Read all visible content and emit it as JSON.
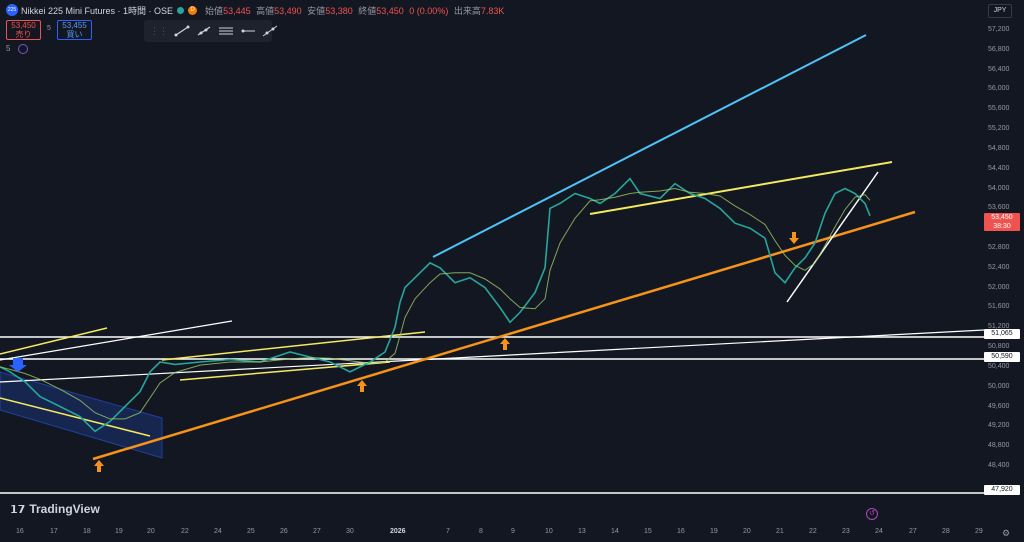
{
  "header": {
    "badge": "225",
    "title": "Nikkei 225 Mini Futures · 1時間 · OSE",
    "badge_d": "D",
    "ohlc": [
      {
        "label": "始値",
        "value": "53,445"
      },
      {
        "label": "高値",
        "value": "53,490"
      },
      {
        "label": "安値",
        "value": "53,380"
      },
      {
        "label": "終値",
        "value": "53,450"
      },
      {
        "label": "",
        "value": "0 (0.00%)"
      },
      {
        "label": "出来高",
        "value": "7.83K"
      }
    ]
  },
  "trade": {
    "sell_price": "53,450",
    "sell_label": "売り",
    "spread": "5",
    "buy_price": "53,455",
    "buy_label": "買い"
  },
  "indicator": {
    "label": "5"
  },
  "currency": "JPY",
  "colors": {
    "up": "#26a69a",
    "down": "#ef5350",
    "orange": "#f7931a",
    "yellow": "#f5e960",
    "cyan": "#4fc3f7",
    "blue": "#2962ff"
  },
  "toolbar_icons": [
    "trend-line-icon",
    "ray-icon",
    "parallel-channel-icon",
    "horizontal-ray-icon",
    "extended-line-icon"
  ],
  "y_ticks": [
    "57,200",
    "56,800",
    "56,400",
    "56,000",
    "55,600",
    "55,200",
    "54,800",
    "54,400",
    "54,000",
    "53,600",
    "52,800",
    "52,400",
    "52,000",
    "51,600",
    "51,200",
    "50,800",
    "50,400",
    "50,000",
    "49,600",
    "49,200",
    "48,800",
    "48,400"
  ],
  "y_labels": [
    {
      "text": "53,450",
      "sub": "38:30",
      "kind": "current"
    },
    {
      "text": "51,065",
      "kind": "line"
    },
    {
      "text": "50,590",
      "kind": "line"
    },
    {
      "text": "47,920",
      "kind": "line"
    }
  ],
  "x_ticks": [
    "16",
    "17",
    "18",
    "19",
    "20",
    "22",
    "24",
    "25",
    "26",
    "27",
    "30",
    "2026",
    "7",
    "8",
    "9",
    "10",
    "13",
    "14",
    "15",
    "16",
    "19",
    "20",
    "21",
    "22",
    "23",
    "24",
    "27",
    "28",
    "29"
  ],
  "brand": "TradingView",
  "chart_data": {
    "type": "line",
    "title": "",
    "ylim": [
      47700,
      57400
    ],
    "y_ticks": [
      57200,
      56800,
      56400,
      56000,
      55600,
      55200,
      54800,
      54400,
      54000,
      53600,
      52800,
      52400,
      52000,
      51600,
      51200,
      50800,
      50400,
      50000,
      49600,
      49200,
      48800,
      48400
    ],
    "horizontal_lines": [
      51065,
      50590,
      47920
    ],
    "last_price": 53450,
    "price_path": [
      [
        0,
        50400
      ],
      [
        10,
        50300
      ],
      [
        25,
        50100
      ],
      [
        40,
        49800
      ],
      [
        60,
        49600
      ],
      [
        80,
        49400
      ],
      [
        95,
        49100
      ],
      [
        110,
        49300
      ],
      [
        125,
        49600
      ],
      [
        140,
        49900
      ],
      [
        150,
        50300
      ],
      [
        160,
        50500
      ],
      [
        175,
        50450
      ],
      [
        200,
        50500
      ],
      [
        230,
        50550
      ],
      [
        260,
        50500
      ],
      [
        290,
        50700
      ],
      [
        310,
        50600
      ],
      [
        330,
        50500
      ],
      [
        350,
        50300
      ],
      [
        370,
        50500
      ],
      [
        385,
        50700
      ],
      [
        395,
        51200
      ],
      [
        400,
        51700
      ],
      [
        405,
        52000
      ],
      [
        415,
        52200
      ],
      [
        430,
        52500
      ],
      [
        440,
        52400
      ],
      [
        455,
        52100
      ],
      [
        470,
        52200
      ],
      [
        485,
        52000
      ],
      [
        500,
        51600
      ],
      [
        510,
        51300
      ],
      [
        520,
        51500
      ],
      [
        535,
        51900
      ],
      [
        545,
        52400
      ],
      [
        550,
        53600
      ],
      [
        560,
        53700
      ],
      [
        575,
        53900
      ],
      [
        590,
        53800
      ],
      [
        600,
        53700
      ],
      [
        615,
        53900
      ],
      [
        630,
        54200
      ],
      [
        640,
        53900
      ],
      [
        660,
        53800
      ],
      [
        675,
        54100
      ],
      [
        690,
        53900
      ],
      [
        705,
        53800
      ],
      [
        720,
        53600
      ],
      [
        735,
        53300
      ],
      [
        750,
        53200
      ],
      [
        765,
        53000
      ],
      [
        775,
        52300
      ],
      [
        785,
        52100
      ],
      [
        795,
        52400
      ],
      [
        805,
        52600
      ],
      [
        815,
        52900
      ],
      [
        825,
        53500
      ],
      [
        835,
        53900
      ],
      [
        845,
        54000
      ],
      [
        855,
        53900
      ],
      [
        865,
        53700
      ],
      [
        870,
        53450
      ]
    ]
  }
}
